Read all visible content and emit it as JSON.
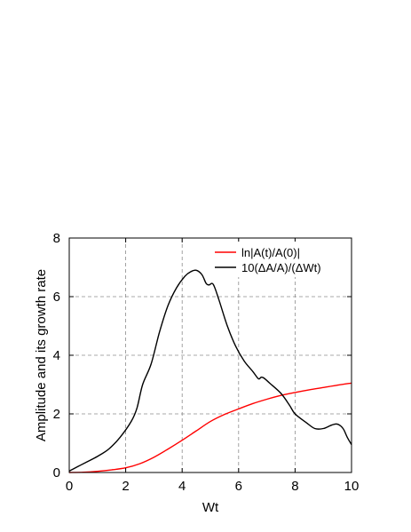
{
  "chart_data": {
    "type": "line",
    "xlabel": "Wt",
    "ylabel": "Amplitude and its growth rate",
    "xlim": [
      0,
      10
    ],
    "ylim": [
      0,
      8
    ],
    "xticks": [
      "0",
      "2",
      "4",
      "6",
      "8",
      "10"
    ],
    "yticks": [
      "0",
      "2",
      "4",
      "6",
      "8"
    ],
    "grid": true,
    "legend_position": "top-right",
    "series": [
      {
        "name": "ln|A(t)/A(0)|",
        "color": "#ff0000",
        "points": [
          [
            0,
            0
          ],
          [
            0.5,
            0.01
          ],
          [
            1.0,
            0.04
          ],
          [
            1.5,
            0.09
          ],
          [
            2.0,
            0.16
          ],
          [
            2.5,
            0.3
          ],
          [
            3.0,
            0.52
          ],
          [
            3.5,
            0.8
          ],
          [
            4.0,
            1.1
          ],
          [
            4.5,
            1.42
          ],
          [
            5.0,
            1.74
          ],
          [
            5.5,
            1.98
          ],
          [
            6.0,
            2.17
          ],
          [
            6.5,
            2.35
          ],
          [
            7.0,
            2.5
          ],
          [
            7.5,
            2.63
          ],
          [
            8.0,
            2.73
          ],
          [
            8.5,
            2.82
          ],
          [
            9.0,
            2.9
          ],
          [
            9.5,
            2.98
          ],
          [
            10.0,
            3.05
          ]
        ]
      },
      {
        "name": "10(ΔA/A)/(ΔWt)",
        "color": "#000000",
        "points": [
          [
            0,
            0.05
          ],
          [
            0.3,
            0.2
          ],
          [
            0.6,
            0.35
          ],
          [
            1.0,
            0.55
          ],
          [
            1.4,
            0.8
          ],
          [
            1.8,
            1.2
          ],
          [
            2.2,
            1.75
          ],
          [
            2.4,
            2.2
          ],
          [
            2.6,
            3.0
          ],
          [
            2.9,
            3.7
          ],
          [
            3.2,
            4.8
          ],
          [
            3.5,
            5.7
          ],
          [
            3.8,
            6.3
          ],
          [
            4.1,
            6.7
          ],
          [
            4.3,
            6.85
          ],
          [
            4.5,
            6.9
          ],
          [
            4.7,
            6.75
          ],
          [
            4.85,
            6.45
          ],
          [
            4.95,
            6.4
          ],
          [
            5.1,
            6.42
          ],
          [
            5.3,
            5.9
          ],
          [
            5.6,
            5.0
          ],
          [
            5.9,
            4.3
          ],
          [
            6.2,
            3.8
          ],
          [
            6.5,
            3.45
          ],
          [
            6.7,
            3.2
          ],
          [
            6.8,
            3.25
          ],
          [
            6.9,
            3.22
          ],
          [
            7.1,
            3.05
          ],
          [
            7.5,
            2.7
          ],
          [
            7.8,
            2.3
          ],
          [
            8.0,
            2.0
          ],
          [
            8.4,
            1.7
          ],
          [
            8.7,
            1.5
          ],
          [
            9.0,
            1.5
          ],
          [
            9.3,
            1.62
          ],
          [
            9.5,
            1.65
          ],
          [
            9.7,
            1.5
          ],
          [
            9.85,
            1.2
          ],
          [
            10.0,
            0.95
          ]
        ]
      }
    ]
  }
}
